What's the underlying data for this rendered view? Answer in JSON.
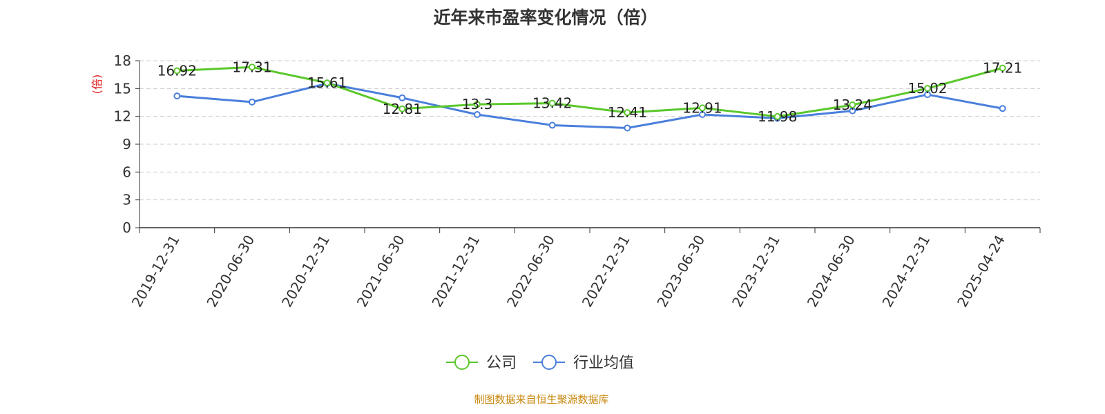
{
  "chart_data": {
    "type": "line",
    "title": "近年来市盈率变化情况（倍）",
    "ylabel": "(倍)",
    "xlabel": "",
    "categories": [
      "2019-12-31",
      "2020-06-30",
      "2020-12-31",
      "2021-06-30",
      "2021-12-31",
      "2022-06-30",
      "2022-12-31",
      "2023-06-30",
      "2023-12-31",
      "2024-06-30",
      "2024-12-31",
      "2025-04-24"
    ],
    "ylim": [
      0,
      18
    ],
    "yticks": [
      0,
      3,
      6,
      9,
      12,
      15,
      18
    ],
    "grid": true,
    "legend_position": "bottom",
    "series": [
      {
        "name": "公司",
        "color": "#5ac72b",
        "values": [
          16.92,
          17.31,
          15.61,
          12.81,
          13.3,
          13.42,
          12.41,
          12.91,
          11.98,
          13.24,
          15.02,
          17.21
        ],
        "labels": [
          "16.92",
          "17.31",
          "15.61",
          "12.81",
          "13.3",
          "13.42",
          "12.41",
          "12.91",
          "11.98",
          "13.24",
          "15.02",
          "17.21"
        ]
      },
      {
        "name": "行业均值",
        "color": "#4a7fdc",
        "values": [
          14.2,
          13.55,
          15.55,
          14.0,
          12.2,
          11.05,
          10.75,
          12.2,
          11.8,
          12.6,
          14.35,
          12.85
        ]
      }
    ]
  },
  "source": {
    "text": "制图数据来自恒生聚源数据库",
    "color": "#c8860a"
  }
}
